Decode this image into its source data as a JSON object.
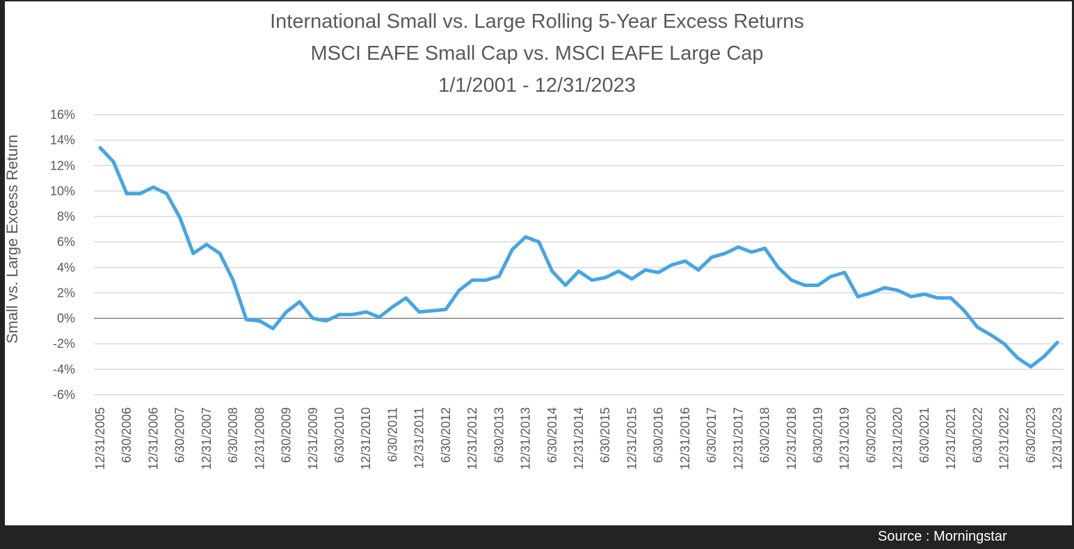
{
  "chart_data": {
    "type": "line",
    "title": "International Small vs. Large Rolling 5-Year Excess Returns",
    "subtitle": "MSCI EAFE Small Cap vs. MSCI EAFE Large Cap",
    "date_range": "1/1/2001 - 12/31/2023",
    "xlabel": "",
    "ylabel": "Small vs. Large Excess Return",
    "ylim": [
      -6,
      16
    ],
    "y_ticks": [
      "16%",
      "14%",
      "12%",
      "10%",
      "8%",
      "6%",
      "4%",
      "2%",
      "0%",
      "-2%",
      "-4%",
      "-6%"
    ],
    "y_tick_values": [
      16,
      14,
      12,
      10,
      8,
      6,
      4,
      2,
      0,
      -2,
      -4,
      -6
    ],
    "x_tick_labels": [
      "12/31/2005",
      "6/30/2006",
      "12/31/2006",
      "6/30/2007",
      "12/31/2007",
      "6/30/2008",
      "12/31/2008",
      "6/30/2009",
      "12/31/2009",
      "6/30/2010",
      "12/31/2010",
      "6/30/2011",
      "12/31/2011",
      "6/30/2012",
      "12/31/2012",
      "6/30/2013",
      "12/31/2013",
      "6/30/2014",
      "12/31/2014",
      "6/30/2015",
      "12/31/2015",
      "6/30/2016",
      "12/31/2016",
      "6/30/2017",
      "12/31/2017",
      "6/30/2018",
      "12/31/2018",
      "6/30/2019",
      "12/31/2019",
      "6/30/2020",
      "12/31/2020",
      "6/30/2021",
      "12/31/2021",
      "6/30/2022",
      "12/31/2022",
      "6/30/2023",
      "12/31/2023"
    ],
    "grid": true,
    "legend": "none",
    "series": [
      {
        "name": "Small vs. Large Excess Return",
        "frequency": "quarterly",
        "color": "#45A5E5",
        "values": [
          13.4,
          12.3,
          9.8,
          9.8,
          10.3,
          9.8,
          7.9,
          5.1,
          5.8,
          5.1,
          3.0,
          -0.1,
          -0.2,
          -0.8,
          0.5,
          1.3,
          0.0,
          -0.2,
          0.3,
          0.3,
          0.5,
          0.1,
          0.9,
          1.6,
          0.5,
          0.6,
          0.7,
          2.2,
          3.0,
          3.0,
          3.3,
          5.4,
          6.4,
          6.0,
          3.7,
          2.6,
          3.7,
          3.0,
          3.2,
          3.7,
          3.1,
          3.8,
          3.6,
          4.2,
          4.5,
          3.8,
          4.8,
          5.1,
          5.6,
          5.2,
          5.5,
          4.0,
          3.0,
          2.6,
          2.6,
          3.3,
          3.6,
          1.7,
          2.0,
          2.4,
          2.2,
          1.7,
          1.9,
          1.6,
          1.6,
          0.6,
          -0.7,
          -1.3,
          -2.0,
          -3.1,
          -3.8,
          -3.0,
          -1.9
        ]
      }
    ],
    "colors": {
      "gridline": "#D9D9D9",
      "zero_line": "#808080",
      "text": "#595959"
    }
  },
  "footer": {
    "source": "Source : Morningstar"
  }
}
